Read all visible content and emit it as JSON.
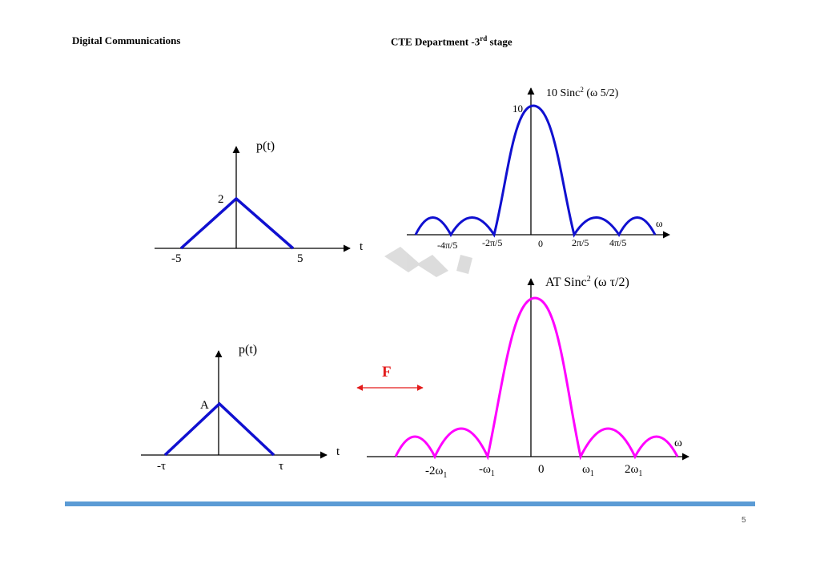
{
  "header": {
    "left": "Digital Communications",
    "right_prefix": "CTE Department -3",
    "right_sup": "rd",
    "right_suffix": " stage"
  },
  "plots": {
    "top_time": {
      "ylabel": "p(t)",
      "xlabel": "t",
      "peak": "2",
      "ticks": [
        "-5",
        "5"
      ]
    },
    "top_freq": {
      "title_prefix": "10 Sinc",
      "title_sup": "2",
      "title_suffix": " (ω 5/2)",
      "peak": "10",
      "xlabel": "ω",
      "ticks": [
        "-4π/5",
        "-2π/5",
        "0",
        "2π/5",
        "4π/5"
      ]
    },
    "bottom_time": {
      "ylabel": "p(t)",
      "xlabel": "t",
      "peak": "A",
      "ticks": [
        "-τ",
        "τ"
      ]
    },
    "bottom_freq": {
      "title_prefix": "AT Sinc",
      "title_sup": "2",
      "title_suffix": " (ω τ/2)",
      "xlabel": "ω",
      "ticks_main": [
        "-2ω",
        "-ω",
        "0",
        "ω",
        "2ω"
      ],
      "tick_subscripts": [
        "1",
        "1",
        "",
        "1",
        "1"
      ]
    },
    "transform_label": "F"
  },
  "colors": {
    "blue": "#1010d0",
    "magenta": "#ff00ff",
    "arrow": "#e31b1b",
    "footer": "#5b9bd5"
  },
  "footer": {
    "page_number": "5"
  }
}
